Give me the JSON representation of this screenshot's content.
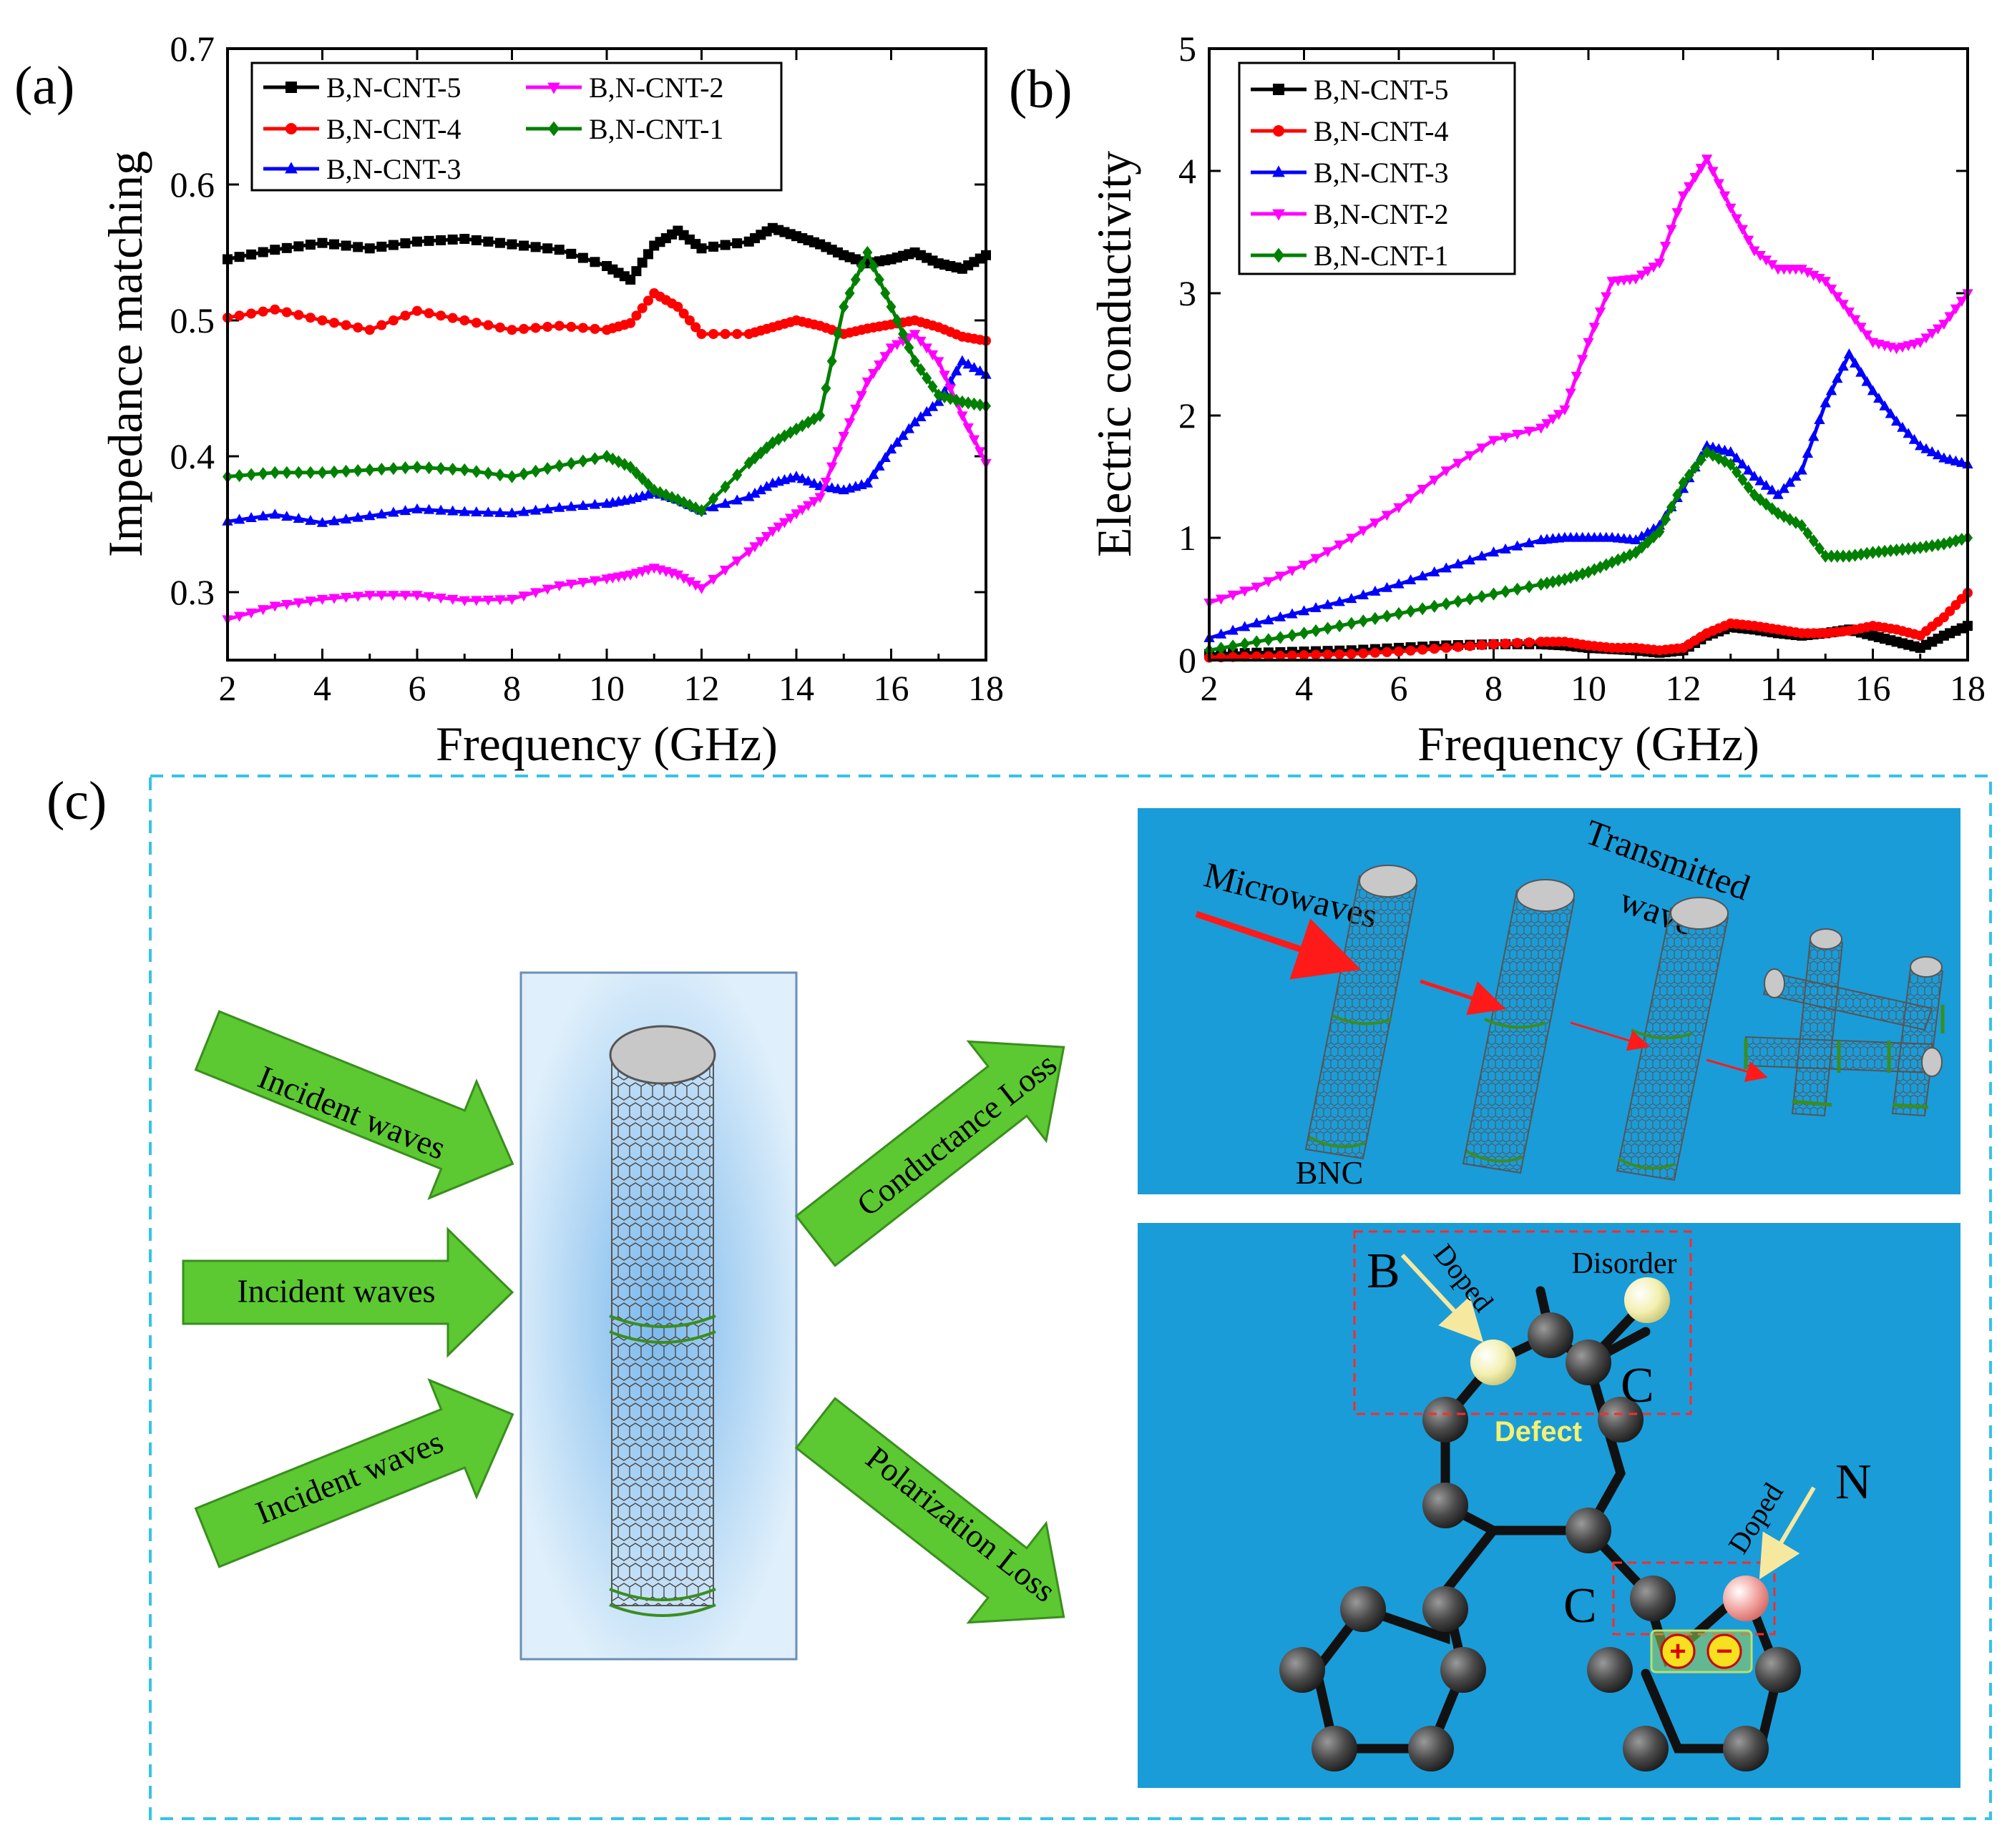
{
  "panel_labels": {
    "a": "(a)",
    "b": "(b)",
    "c": "(c)"
  },
  "colors": {
    "B,N-CNT-5": "#000000",
    "B,N-CNT-4": "#ff0000",
    "B,N-CNT-3": "#0000ff",
    "B,N-CNT-2": "#ff00ff",
    "B,N-CNT-1": "#008000",
    "panel_bg": "#1a9cd8",
    "arrow_green": "#5cc832",
    "dash_frame": "#35c3e8"
  },
  "chart_data": [
    {
      "type": "line",
      "panel": "(a)",
      "title": "",
      "xlabel": "Frequency (GHz)",
      "ylabel": "Impedance matching",
      "xlim": [
        2,
        18
      ],
      "ylim": [
        0.25,
        0.7
      ],
      "xticks": [
        "2",
        "4",
        "6",
        "8",
        "10",
        "12",
        "14",
        "16",
        "18"
      ],
      "yticks": [
        "0.3",
        "0.4",
        "0.5",
        "0.6",
        "0.7"
      ],
      "legend_position": "top-left, two columns",
      "legend_order": [
        "B,N-CNT-5",
        "B,N-CNT-4",
        "B,N-CNT-3",
        "B,N-CNT-2",
        "B,N-CNT-1"
      ],
      "x": [
        2,
        3,
        4,
        5,
        6,
        7,
        8,
        9,
        10,
        10.5,
        11,
        11.5,
        12,
        13,
        13.5,
        14,
        14.5,
        15,
        15.5,
        16,
        16.5,
        17,
        17.5,
        18
      ],
      "series": [
        {
          "name": "B,N-CNT-5",
          "marker": "square",
          "values": [
            0.545,
            0.552,
            0.557,
            0.553,
            0.558,
            0.56,
            0.556,
            0.552,
            0.54,
            0.53,
            0.555,
            0.566,
            0.553,
            0.558,
            0.568,
            0.562,
            0.556,
            0.548,
            0.542,
            0.545,
            0.55,
            0.542,
            0.538,
            0.548
          ]
        },
        {
          "name": "B,N-CNT-4",
          "marker": "circle",
          "values": [
            0.502,
            0.508,
            0.5,
            0.493,
            0.507,
            0.5,
            0.493,
            0.496,
            0.493,
            0.498,
            0.52,
            0.51,
            0.49,
            0.49,
            0.495,
            0.5,
            0.496,
            0.49,
            0.494,
            0.497,
            0.5,
            0.495,
            0.488,
            0.485
          ]
        },
        {
          "name": "B,N-CNT-3",
          "marker": "triangle-up",
          "values": [
            0.352,
            0.357,
            0.351,
            0.356,
            0.361,
            0.359,
            0.358,
            0.362,
            0.365,
            0.368,
            0.373,
            0.368,
            0.36,
            0.37,
            0.38,
            0.385,
            0.378,
            0.375,
            0.38,
            0.405,
            0.425,
            0.44,
            0.47,
            0.46
          ]
        },
        {
          "name": "B,N-CNT-2",
          "marker": "triangle-down",
          "values": [
            0.28,
            0.29,
            0.295,
            0.298,
            0.298,
            0.294,
            0.295,
            0.305,
            0.31,
            0.313,
            0.318,
            0.313,
            0.303,
            0.33,
            0.345,
            0.358,
            0.37,
            0.415,
            0.455,
            0.48,
            0.49,
            0.47,
            0.43,
            0.395
          ]
        },
        {
          "name": "B,N-CNT-1",
          "marker": "diamond",
          "values": [
            0.385,
            0.388,
            0.388,
            0.39,
            0.392,
            0.39,
            0.385,
            0.393,
            0.4,
            0.392,
            0.375,
            0.368,
            0.36,
            0.395,
            0.41,
            0.42,
            0.43,
            0.51,
            0.55,
            0.51,
            0.47,
            0.445,
            0.44,
            0.437
          ]
        }
      ]
    },
    {
      "type": "line",
      "panel": "(b)",
      "title": "",
      "xlabel": "Frequency (GHz)",
      "ylabel": "Electric conductivity",
      "xlim": [
        2,
        18
      ],
      "ylim": [
        0,
        5
      ],
      "xticks": [
        "2",
        "4",
        "6",
        "8",
        "10",
        "12",
        "14",
        "16",
        "18"
      ],
      "yticks": [
        "0",
        "1",
        "2",
        "3",
        "4",
        "5"
      ],
      "legend_position": "top-left",
      "legend_order": [
        "B,N-CNT-5",
        "B,N-CNT-4",
        "B,N-CNT-3",
        "B,N-CNT-2",
        "B,N-CNT-1"
      ],
      "x": [
        2,
        3,
        4,
        5,
        6,
        7,
        8,
        9,
        9.5,
        10,
        10.5,
        11,
        11.5,
        12,
        12.5,
        13,
        13.5,
        14,
        14.5,
        15,
        15.5,
        16,
        16.5,
        17,
        17.5,
        18
      ],
      "series": [
        {
          "name": "B,N-CNT-5",
          "marker": "square",
          "values": [
            0.05,
            0.06,
            0.07,
            0.08,
            0.1,
            0.12,
            0.13,
            0.13,
            0.12,
            0.1,
            0.09,
            0.08,
            0.06,
            0.08,
            0.2,
            0.27,
            0.25,
            0.22,
            0.2,
            0.22,
            0.25,
            0.2,
            0.15,
            0.1,
            0.2,
            0.28
          ]
        },
        {
          "name": "B,N-CNT-4",
          "marker": "circle",
          "values": [
            0.02,
            0.03,
            0.04,
            0.05,
            0.07,
            0.1,
            0.13,
            0.15,
            0.15,
            0.12,
            0.1,
            0.1,
            0.08,
            0.1,
            0.22,
            0.3,
            0.28,
            0.25,
            0.22,
            0.22,
            0.24,
            0.28,
            0.25,
            0.2,
            0.35,
            0.55
          ]
        },
        {
          "name": "B,N-CNT-3",
          "marker": "triangle-up",
          "values": [
            0.18,
            0.3,
            0.4,
            0.5,
            0.62,
            0.75,
            0.88,
            0.98,
            1.0,
            1.0,
            1.0,
            0.98,
            1.1,
            1.4,
            1.75,
            1.7,
            1.5,
            1.35,
            1.55,
            2.1,
            2.5,
            2.2,
            1.95,
            1.75,
            1.65,
            1.6
          ]
        },
        {
          "name": "B,N-CNT-2",
          "marker": "triangle-down",
          "values": [
            0.47,
            0.6,
            0.78,
            1.0,
            1.25,
            1.55,
            1.8,
            1.9,
            2.05,
            2.6,
            3.1,
            3.12,
            3.25,
            3.8,
            4.1,
            3.7,
            3.35,
            3.2,
            3.2,
            3.1,
            2.85,
            2.6,
            2.55,
            2.6,
            2.75,
            3.0
          ]
        },
        {
          "name": "B,N-CNT-1",
          "marker": "diamond",
          "values": [
            0.08,
            0.15,
            0.22,
            0.3,
            0.38,
            0.46,
            0.54,
            0.62,
            0.66,
            0.72,
            0.8,
            0.88,
            1.05,
            1.45,
            1.7,
            1.6,
            1.35,
            1.2,
            1.1,
            0.85,
            0.85,
            0.88,
            0.9,
            0.92,
            0.95,
            1.0
          ]
        }
      ]
    }
  ],
  "diagram": {
    "incident": [
      "Incident waves",
      "Incident waves",
      "Incident waves"
    ],
    "conductance": "Conductance Loss",
    "polarization": "Polarization Loss",
    "microwaves": "Microwaves",
    "transmitted": "Transmitted",
    "wave": "wave",
    "bnc": "BNC",
    "atom_b": "B",
    "atom_n": "N",
    "atom_c_top": "C",
    "atom_c_bottom": "C",
    "doped_top": "Doped",
    "doped_bottom": "Doped",
    "disorder": "Disorder",
    "defect": "Defect",
    "plus": "+",
    "minus": "−"
  }
}
